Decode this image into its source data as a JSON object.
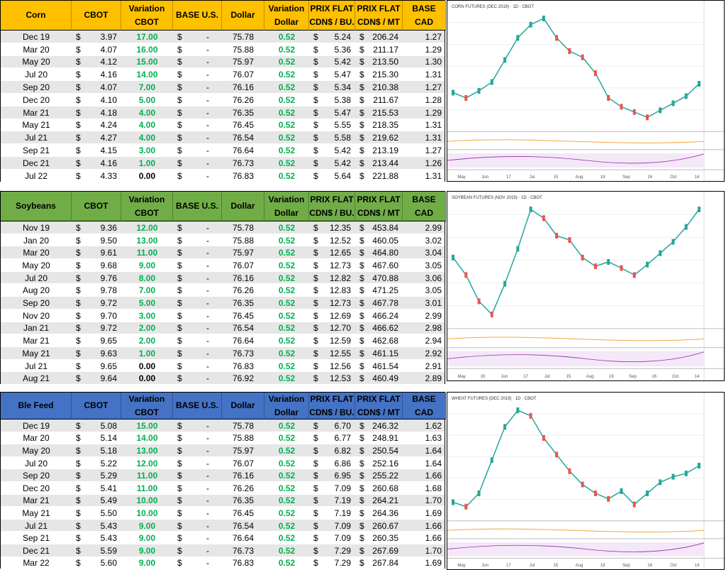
{
  "tables": [
    {
      "headers": [
        "Corn",
        "CBOT",
        "Variation CBOT",
        "BASE U.S.",
        "Dollar",
        "Variation Dollar",
        "PRIX FLAT CDN$ / BU.",
        "PRIX FLAT CDN$ / MT",
        "BASE CAD"
      ],
      "header_color": "#ffc000",
      "rows": [
        [
          "Dec 19",
          "$",
          "3.97",
          "17.00",
          "$",
          "-",
          "75.78",
          "0.52",
          "$",
          "5.24",
          "$",
          "206.24",
          "1.27"
        ],
        [
          "Mar 20",
          "$",
          "4.07",
          "16.00",
          "$",
          "-",
          "75.88",
          "0.52",
          "$",
          "5.36",
          "$",
          "211.17",
          "1.29"
        ],
        [
          "May 20",
          "$",
          "4.12",
          "15.00",
          "$",
          "-",
          "75.97",
          "0.52",
          "$",
          "5.42",
          "$",
          "213.50",
          "1.30"
        ],
        [
          "Jul 20",
          "$",
          "4.16",
          "14.00",
          "$",
          "-",
          "76.07",
          "0.52",
          "$",
          "5.47",
          "$",
          "215.30",
          "1.31"
        ],
        [
          "Sep 20",
          "$",
          "4.07",
          "7.00",
          "$",
          "-",
          "76.16",
          "0.52",
          "$",
          "5.34",
          "$",
          "210.38",
          "1.27"
        ],
        [
          "Dec 20",
          "$",
          "4.10",
          "5.00",
          "$",
          "-",
          "76.26",
          "0.52",
          "$",
          "5.38",
          "$",
          "211.67",
          "1.28"
        ],
        [
          "Mar 21",
          "$",
          "4.18",
          "4.00",
          "$",
          "-",
          "76.35",
          "0.52",
          "$",
          "5.47",
          "$",
          "215.53",
          "1.29"
        ],
        [
          "May 21",
          "$",
          "4.24",
          "4.00",
          "$",
          "-",
          "76.45",
          "0.52",
          "$",
          "5.55",
          "$",
          "218.35",
          "1.31"
        ],
        [
          "Jul 21",
          "$",
          "4.27",
          "4.00",
          "$",
          "-",
          "76.54",
          "0.52",
          "$",
          "5.58",
          "$",
          "219.62",
          "1.31"
        ],
        [
          "Sep 21",
          "$",
          "4.15",
          "3.00",
          "$",
          "-",
          "76.64",
          "0.52",
          "$",
          "5.42",
          "$",
          "213.19",
          "1.27"
        ],
        [
          "Dec 21",
          "$",
          "4.16",
          "1.00",
          "$",
          "-",
          "76.73",
          "0.52",
          "$",
          "5.42",
          "$",
          "213.44",
          "1.26"
        ],
        [
          "Jul 22",
          "$",
          "4.33",
          "0.00",
          "$",
          "-",
          "76.83",
          "0.52",
          "$",
          "5.64",
          "$",
          "221.88",
          "1.31"
        ]
      ]
    },
    {
      "headers": [
        "Soybeans",
        "CBOT",
        "Variation CBOT",
        "BASE U.S.",
        "Dollar",
        "Variation Dollar",
        "PRIX FLAT CDN$ / BU.",
        "PRIX FLAT CDN$ / MT",
        "BASE CAD"
      ],
      "header_color": "#70ad47",
      "rows": [
        [
          "Nov 19",
          "$",
          "9.36",
          "12.00",
          "$",
          "-",
          "75.78",
          "0.52",
          "$",
          "12.35",
          "$",
          "453.84",
          "2.99"
        ],
        [
          "Jan 20",
          "$",
          "9.50",
          "13.00",
          "$",
          "-",
          "75.88",
          "0.52",
          "$",
          "12.52",
          "$",
          "460.05",
          "3.02"
        ],
        [
          "Mar 20",
          "$",
          "9.61",
          "11.00",
          "$",
          "-",
          "75.97",
          "0.52",
          "$",
          "12.65",
          "$",
          "464.80",
          "3.04"
        ],
        [
          "May 20",
          "$",
          "9.68",
          "9.00",
          "$",
          "-",
          "76.07",
          "0.52",
          "$",
          "12.73",
          "$",
          "467.60",
          "3.05"
        ],
        [
          "Jul 20",
          "$",
          "9.76",
          "8.00",
          "$",
          "-",
          "76.16",
          "0.52",
          "$",
          "12.82",
          "$",
          "470.88",
          "3.06"
        ],
        [
          "Aug 20",
          "$",
          "9.78",
          "7.00",
          "$",
          "-",
          "76.26",
          "0.52",
          "$",
          "12.83",
          "$",
          "471.25",
          "3.05"
        ],
        [
          "Sep 20",
          "$",
          "9.72",
          "5.00",
          "$",
          "-",
          "76.35",
          "0.52",
          "$",
          "12.73",
          "$",
          "467.78",
          "3.01"
        ],
        [
          "Nov 20",
          "$",
          "9.70",
          "3.00",
          "$",
          "-",
          "76.45",
          "0.52",
          "$",
          "12.69",
          "$",
          "466.24",
          "2.99"
        ],
        [
          "Jan 21",
          "$",
          "9.72",
          "2.00",
          "$",
          "-",
          "76.54",
          "0.52",
          "$",
          "12.70",
          "$",
          "466.62",
          "2.98"
        ],
        [
          "Mar 21",
          "$",
          "9.65",
          "2.00",
          "$",
          "-",
          "76.64",
          "0.52",
          "$",
          "12.59",
          "$",
          "462.68",
          "2.94"
        ],
        [
          "May 21",
          "$",
          "9.63",
          "1.00",
          "$",
          "-",
          "76.73",
          "0.52",
          "$",
          "12.55",
          "$",
          "461.15",
          "2.92"
        ],
        [
          "Jul 21",
          "$",
          "9.65",
          "0.00",
          "$",
          "-",
          "76.83",
          "0.52",
          "$",
          "12.56",
          "$",
          "461.54",
          "2.91"
        ],
        [
          "Aug 21",
          "$",
          "9.64",
          "0.00",
          "$",
          "-",
          "76.92",
          "0.52",
          "$",
          "12.53",
          "$",
          "460.49",
          "2.89"
        ]
      ]
    },
    {
      "headers": [
        "Ble Feed",
        "CBOT",
        "Variation CBOT",
        "BASE U.S.",
        "Dollar",
        "Variation Dollar",
        "PRIX FLAT CDN$ / BU.",
        "PRIX FLAT CDN$ / MT",
        "BASE CAD"
      ],
      "header_color": "#4472c4",
      "rows": [
        [
          "Dec 19",
          "$",
          "5.08",
          "15.00",
          "$",
          "-",
          "75.78",
          "0.52",
          "$",
          "6.70",
          "$",
          "246.32",
          "1.62"
        ],
        [
          "Mar 20",
          "$",
          "5.14",
          "14.00",
          "$",
          "-",
          "75.88",
          "0.52",
          "$",
          "6.77",
          "$",
          "248.91",
          "1.63"
        ],
        [
          "May 20",
          "$",
          "5.18",
          "13.00",
          "$",
          "-",
          "75.97",
          "0.52",
          "$",
          "6.82",
          "$",
          "250.54",
          "1.64"
        ],
        [
          "Jul 20",
          "$",
          "5.22",
          "12.00",
          "$",
          "-",
          "76.07",
          "0.52",
          "$",
          "6.86",
          "$",
          "252.16",
          "1.64"
        ],
        [
          "Sep 20",
          "$",
          "5.29",
          "11.00",
          "$",
          "-",
          "76.16",
          "0.52",
          "$",
          "6.95",
          "$",
          "255.22",
          "1.66"
        ],
        [
          "Dec 20",
          "$",
          "5.41",
          "11.00",
          "$",
          "-",
          "76.26",
          "0.52",
          "$",
          "7.09",
          "$",
          "260.68",
          "1.68"
        ],
        [
          "Mar 21",
          "$",
          "5.49",
          "10.00",
          "$",
          "-",
          "76.35",
          "0.52",
          "$",
          "7.19",
          "$",
          "264.21",
          "1.70"
        ],
        [
          "May 21",
          "$",
          "5.50",
          "10.00",
          "$",
          "-",
          "76.45",
          "0.52",
          "$",
          "7.19",
          "$",
          "264.36",
          "1.69"
        ],
        [
          "Jul 21",
          "$",
          "5.43",
          "9.00",
          "$",
          "-",
          "76.54",
          "0.52",
          "$",
          "7.09",
          "$",
          "260.67",
          "1.66"
        ],
        [
          "Sep 21",
          "$",
          "5.43",
          "9.00",
          "$",
          "-",
          "76.64",
          "0.52",
          "$",
          "7.09",
          "$",
          "260.35",
          "1.66"
        ],
        [
          "Dec 21",
          "$",
          "5.59",
          "9.00",
          "$",
          "-",
          "76.73",
          "0.52",
          "$",
          "7.29",
          "$",
          "267.69",
          "1.70"
        ],
        [
          "Mar 22",
          "$",
          "5.60",
          "9.00",
          "$",
          "-",
          "76.83",
          "0.52",
          "$",
          "7.29",
          "$",
          "267.84",
          "1.69"
        ]
      ]
    }
  ],
  "charts": [
    {
      "title": "CORN FUTURES (DEC 2019) · 1D · CBOT",
      "x_labels": [
        "May",
        "Jun",
        "17",
        "Jul",
        "15",
        "Aug",
        "19",
        "Sep",
        "16",
        "Oct",
        "14"
      ],
      "closes": [
        378,
        372,
        380,
        390,
        415,
        440,
        455,
        462,
        440,
        425,
        418,
        400,
        372,
        362,
        356,
        350,
        358,
        366,
        374,
        388
      ]
    },
    {
      "title": "SOYBEAN FUTURES (NOV 2019) · 1D · CBOT",
      "x_labels": [
        "May",
        "20",
        "Jun",
        "17",
        "Jul",
        "15",
        "Aug",
        "19",
        "Sep",
        "16",
        "Oct",
        "14"
      ],
      "closes": [
        880,
        860,
        830,
        815,
        850,
        890,
        935,
        925,
        905,
        900,
        880,
        870,
        875,
        868,
        860,
        872,
        885,
        898,
        915,
        935
      ]
    },
    {
      "title": "WHEAT FUTURES (DEC 2019) · 1D · CBOT",
      "x_labels": [
        "May",
        "Jun",
        "17",
        "Jul",
        "15",
        "Aug",
        "19",
        "Sep",
        "16",
        "Oct",
        "14"
      ],
      "closes": [
        462,
        458,
        470,
        500,
        530,
        545,
        540,
        520,
        505,
        490,
        478,
        470,
        465,
        472,
        460,
        470,
        480,
        485,
        488,
        495
      ]
    }
  ]
}
